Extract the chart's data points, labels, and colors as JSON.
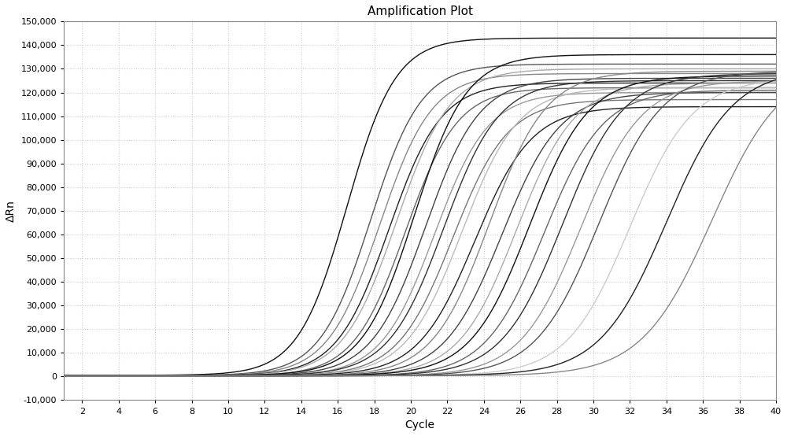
{
  "title": "Amplification Plot",
  "xlabel": "Cycle",
  "ylabel": "ΔRn",
  "xlim": [
    1,
    40
  ],
  "ylim": [
    -10000,
    150000
  ],
  "xticks": [
    2,
    4,
    6,
    8,
    10,
    12,
    14,
    16,
    18,
    20,
    22,
    24,
    26,
    28,
    30,
    32,
    34,
    36,
    38,
    40
  ],
  "yticks": [
    -10000,
    0,
    10000,
    20000,
    30000,
    40000,
    50000,
    60000,
    70000,
    80000,
    90000,
    100000,
    110000,
    120000,
    130000,
    140000,
    150000
  ],
  "background_color": "#ffffff",
  "grid_color": "#cccccc",
  "curves": [
    {
      "midpoint": 16.5,
      "plateau": 143000,
      "steepness": 0.75,
      "color": "#111111",
      "baseline": 500
    },
    {
      "midpoint": 17.8,
      "plateau": 132000,
      "steepness": 0.72,
      "color": "#555555",
      "baseline": 400
    },
    {
      "midpoint": 18.3,
      "plateau": 128000,
      "steepness": 0.7,
      "color": "#888888",
      "baseline": 300
    },
    {
      "midpoint": 18.8,
      "plateau": 124000,
      "steepness": 0.7,
      "color": "#222222",
      "baseline": 300
    },
    {
      "midpoint": 19.2,
      "plateau": 130000,
      "steepness": 0.68,
      "color": "#aaaaaa",
      "baseline": 200
    },
    {
      "midpoint": 19.7,
      "plateau": 122000,
      "steepness": 0.7,
      "color": "#666666",
      "baseline": 200
    },
    {
      "midpoint": 20.2,
      "plateau": 136000,
      "steepness": 0.7,
      "color": "#111111",
      "baseline": 400
    },
    {
      "midpoint": 20.8,
      "plateau": 126000,
      "steepness": 0.68,
      "color": "#444444",
      "baseline": 300
    },
    {
      "midpoint": 21.3,
      "plateau": 120000,
      "steepness": 0.68,
      "color": "#999999",
      "baseline": 200
    },
    {
      "midpoint": 21.8,
      "plateau": 125000,
      "steepness": 0.66,
      "color": "#333333",
      "baseline": 300
    },
    {
      "midpoint": 22.3,
      "plateau": 117000,
      "steepness": 0.66,
      "color": "#777777",
      "baseline": 200
    },
    {
      "midpoint": 22.8,
      "plateau": 122000,
      "steepness": 0.65,
      "color": "#bbbbbb",
      "baseline": 200
    },
    {
      "midpoint": 23.5,
      "plateau": 114000,
      "steepness": 0.64,
      "color": "#222222",
      "baseline": 300
    },
    {
      "midpoint": 24.3,
      "plateau": 129000,
      "steepness": 0.64,
      "color": "#888888",
      "baseline": 200
    },
    {
      "midpoint": 25.0,
      "plateau": 120000,
      "steepness": 0.63,
      "color": "#444444",
      "baseline": 200
    },
    {
      "midpoint": 25.8,
      "plateau": 124000,
      "steepness": 0.63,
      "color": "#aaaaaa",
      "baseline": 300
    },
    {
      "midpoint": 26.5,
      "plateau": 127000,
      "steepness": 0.62,
      "color": "#111111",
      "baseline": 400
    },
    {
      "midpoint": 27.3,
      "plateau": 121000,
      "steepness": 0.62,
      "color": "#666666",
      "baseline": 200
    },
    {
      "midpoint": 28.3,
      "plateau": 128000,
      "steepness": 0.6,
      "color": "#333333",
      "baseline": 300
    },
    {
      "midpoint": 29.3,
      "plateau": 125000,
      "steepness": 0.6,
      "color": "#999999",
      "baseline": 200
    },
    {
      "midpoint": 30.3,
      "plateau": 129000,
      "steepness": 0.58,
      "color": "#555555",
      "baseline": 200
    },
    {
      "midpoint": 32.0,
      "plateau": 126000,
      "steepness": 0.58,
      "color": "#cccccc",
      "baseline": 300
    },
    {
      "midpoint": 34.0,
      "plateau": 130000,
      "steepness": 0.55,
      "color": "#222222",
      "baseline": 400
    },
    {
      "midpoint": 36.5,
      "plateau": 132000,
      "steepness": 0.52,
      "color": "#888888",
      "baseline": 300
    }
  ],
  "linewidth": 1.0
}
